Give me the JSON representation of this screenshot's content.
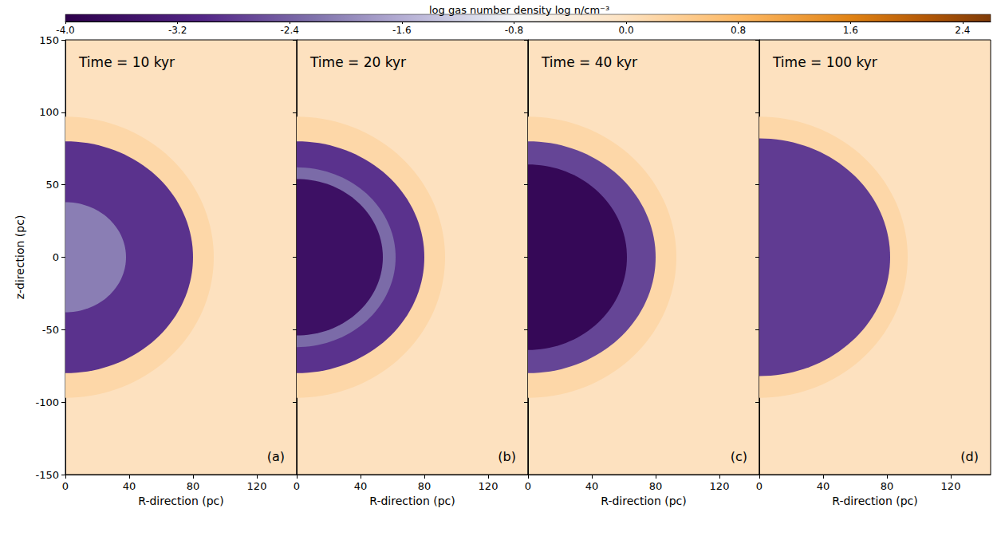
{
  "chart_data": {
    "type": "heatmap",
    "colorbar": {
      "label": "log gas number density log n/cm⁻³",
      "lim": [
        -4,
        2.6
      ],
      "ticks": [
        {
          "value": -4,
          "label": "-4.0"
        },
        -3.2,
        -2.4,
        -1.6,
        -0.8,
        {
          "value": 0,
          "label": "0.0"
        },
        0.8,
        1.6,
        2.4
      ]
    },
    "xlabel": "R-direction (pc)",
    "ylabel": "z-direction (pc)",
    "xlim": [
      0,
      145
    ],
    "xticks": [
      0,
      40,
      80,
      120
    ],
    "ylim": [
      -150,
      150
    ],
    "yticks": [
      -150,
      -100,
      -50,
      0,
      50,
      100,
      150
    ],
    "panels": [
      {
        "title": "Time = 10 kyr",
        "label": "(a)",
        "ambient_log_n": 0.0,
        "zones": [
          {
            "r": 93,
            "z": 97,
            "log_n": 0.2
          },
          {
            "r": 80,
            "z": 80,
            "log_n": -2.9
          },
          {
            "r": 38,
            "z": 38,
            "log_n": -2.1
          }
        ]
      },
      {
        "title": "Time = 20 kyr",
        "label": "(b)",
        "ambient_log_n": 0.0,
        "tick_labels": "x",
        "zones": [
          {
            "r": 93,
            "z": 97,
            "log_n": 0.2
          },
          {
            "r": 80,
            "z": 80,
            "log_n": -2.9
          },
          {
            "r": 62,
            "z": 62,
            "log_n": -2.3
          },
          {
            "r": 54,
            "z": 54,
            "log_n": -3.6
          }
        ]
      },
      {
        "title": "Time = 40 kyr",
        "label": "(c)",
        "ambient_log_n": 0.0,
        "tick_labels": "x",
        "zones": [
          {
            "r": 93,
            "z": 97,
            "log_n": 0.2
          },
          {
            "r": 80,
            "z": 80,
            "log_n": -2.7
          },
          {
            "r": 62,
            "z": 64,
            "log_n": -3.8
          }
        ]
      },
      {
        "title": "Time = 100 kyr",
        "label": "(d)",
        "ambient_log_n": 0.0,
        "tick_labels": "x",
        "zones": [
          {
            "r": 93,
            "z": 97,
            "log_n": 0.2
          },
          {
            "r": 82,
            "z": 82,
            "log_n": -2.8
          }
        ]
      }
    ]
  }
}
